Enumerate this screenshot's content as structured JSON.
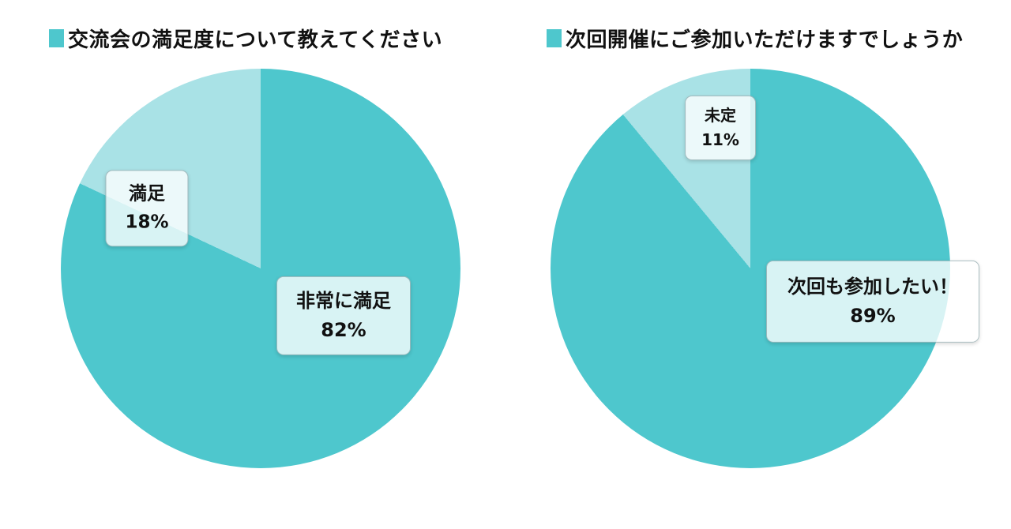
{
  "colors": {
    "primary": "#4ec7cd",
    "secondary": "#a9e2e6",
    "background": "#ffffff",
    "label_box_border": "#64878c",
    "text": "#111111"
  },
  "chart_data": [
    {
      "type": "pie",
      "title": "交流会の満足度について教えてください",
      "legend_position": "none",
      "labels_on_chart": true,
      "start_angle_deg": 0,
      "direction": "clockwise",
      "slices": [
        {
          "label": "非常に満足",
          "value": 82,
          "pct_label": "82%",
          "color": "#4ec7cd"
        },
        {
          "label": "満足",
          "value": 18,
          "pct_label": "18%",
          "color": "#a9e2e6"
        }
      ]
    },
    {
      "type": "pie",
      "title": "次回開催にご参加いただけますでしょうか",
      "legend_position": "none",
      "labels_on_chart": true,
      "start_angle_deg": 0,
      "direction": "clockwise",
      "slices": [
        {
          "label": "次回も参加したい！",
          "value": 89,
          "pct_label": "89%",
          "color": "#4ec7cd"
        },
        {
          "label": "未定",
          "value": 11,
          "pct_label": "11%",
          "color": "#a9e2e6"
        }
      ]
    }
  ]
}
